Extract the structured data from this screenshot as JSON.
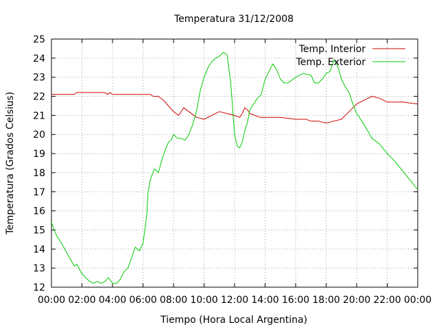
{
  "chart_data": {
    "type": "line",
    "title": "Temperatura 31/12/2008",
    "xlabel": "Tiempo (Hora Local Argentina)",
    "ylabel": "Temperatura (Grados Celsius)",
    "xlim": [
      "00:00",
      "24:00"
    ],
    "ylim": [
      12,
      25
    ],
    "xticks": [
      "00:00",
      "02:00",
      "04:00",
      "06:00",
      "08:00",
      "10:00",
      "12:00",
      "14:00",
      "16:00",
      "18:00",
      "20:00",
      "22:00",
      "00:00"
    ],
    "yticks": [
      12,
      13,
      14,
      15,
      16,
      17,
      18,
      19,
      20,
      21,
      22,
      23,
      24,
      25
    ],
    "grid": true,
    "legend_position": "top-right",
    "series": [
      {
        "name": "Temp. Interior",
        "color": "#cc0000",
        "x": [
          "00:00",
          "01:30",
          "01:40",
          "03:30",
          "03:40",
          "03:50",
          "04:00",
          "05:00",
          "06:30",
          "06:40",
          "07:00",
          "07:20",
          "07:40",
          "08:00",
          "08:20",
          "08:40",
          "09:00",
          "09:30",
          "10:00",
          "10:30",
          "11:00",
          "11:30",
          "12:00",
          "12:20",
          "12:30",
          "12:40",
          "12:50",
          "13:00",
          "13:20",
          "13:40",
          "14:00",
          "15:00",
          "16:00",
          "16:40",
          "17:00",
          "17:30",
          "18:00",
          "18:30",
          "19:00",
          "19:30",
          "20:00",
          "20:30",
          "21:00",
          "21:30",
          "22:00",
          "23:00",
          "24:00"
        ],
        "values": [
          22.1,
          22.1,
          22.2,
          22.2,
          22.1,
          22.2,
          22.1,
          22.1,
          22.1,
          22.0,
          22.0,
          21.8,
          21.5,
          21.2,
          21.0,
          21.4,
          21.2,
          20.9,
          20.8,
          21.0,
          21.2,
          21.1,
          21.0,
          20.9,
          21.1,
          21.4,
          21.3,
          21.1,
          21.0,
          20.9,
          20.9,
          20.9,
          20.8,
          20.8,
          20.7,
          20.7,
          20.6,
          20.7,
          20.8,
          21.2,
          21.6,
          21.8,
          22.0,
          21.9,
          21.7,
          21.7,
          21.6
        ]
      },
      {
        "name": "Temp. Exterior",
        "color": "#00cc00",
        "x": [
          "00:00",
          "00:20",
          "00:40",
          "01:00",
          "01:30",
          "01:40",
          "02:00",
          "02:30",
          "02:45",
          "03:00",
          "03:15",
          "03:30",
          "03:45",
          "04:00",
          "04:15",
          "04:30",
          "04:45",
          "05:00",
          "05:30",
          "05:45",
          "06:00",
          "06:15",
          "06:20",
          "06:30",
          "06:45",
          "07:00",
          "07:15",
          "07:30",
          "07:40",
          "07:50",
          "08:00",
          "08:15",
          "08:30",
          "08:45",
          "09:00",
          "09:15",
          "09:30",
          "09:45",
          "10:00",
          "10:15",
          "10:30",
          "10:45",
          "11:00",
          "11:15",
          "11:30",
          "11:45",
          "12:00",
          "12:10",
          "12:20",
          "12:30",
          "12:40",
          "12:50",
          "13:00",
          "13:15",
          "13:30",
          "13:45",
          "14:00",
          "14:15",
          "14:30",
          "14:45",
          "15:00",
          "15:15",
          "15:30",
          "16:00",
          "16:15",
          "16:30",
          "17:00",
          "17:15",
          "17:30",
          "17:45",
          "18:00",
          "18:15",
          "18:30",
          "18:45",
          "19:00",
          "19:15",
          "19:30",
          "19:45",
          "20:00",
          "20:30",
          "21:00",
          "21:30",
          "22:00",
          "22:30",
          "23:00",
          "23:30",
          "24:00"
        ],
        "values": [
          15.4,
          14.7,
          14.3,
          13.8,
          13.1,
          13.2,
          12.7,
          12.3,
          12.2,
          12.3,
          12.2,
          12.3,
          12.5,
          12.2,
          12.2,
          12.4,
          12.8,
          13.0,
          14.1,
          13.9,
          14.3,
          15.8,
          17.0,
          17.7,
          18.2,
          18.0,
          18.7,
          19.3,
          19.6,
          19.7,
          20.0,
          19.8,
          19.8,
          19.7,
          20.0,
          20.5,
          21.2,
          22.3,
          23.0,
          23.5,
          23.8,
          24.0,
          24.1,
          24.3,
          24.2,
          22.7,
          20.0,
          19.4,
          19.3,
          19.6,
          20.2,
          20.6,
          21.3,
          21.6,
          21.9,
          22.1,
          22.9,
          23.3,
          23.7,
          23.4,
          22.9,
          22.7,
          22.7,
          23.0,
          23.1,
          23.2,
          23.1,
          22.7,
          22.7,
          22.9,
          23.2,
          23.3,
          23.9,
          23.6,
          22.9,
          22.5,
          22.2,
          21.6,
          21.1,
          20.5,
          19.8,
          19.5,
          19.0,
          18.6,
          18.1,
          17.6,
          17.1
        ]
      }
    ]
  }
}
